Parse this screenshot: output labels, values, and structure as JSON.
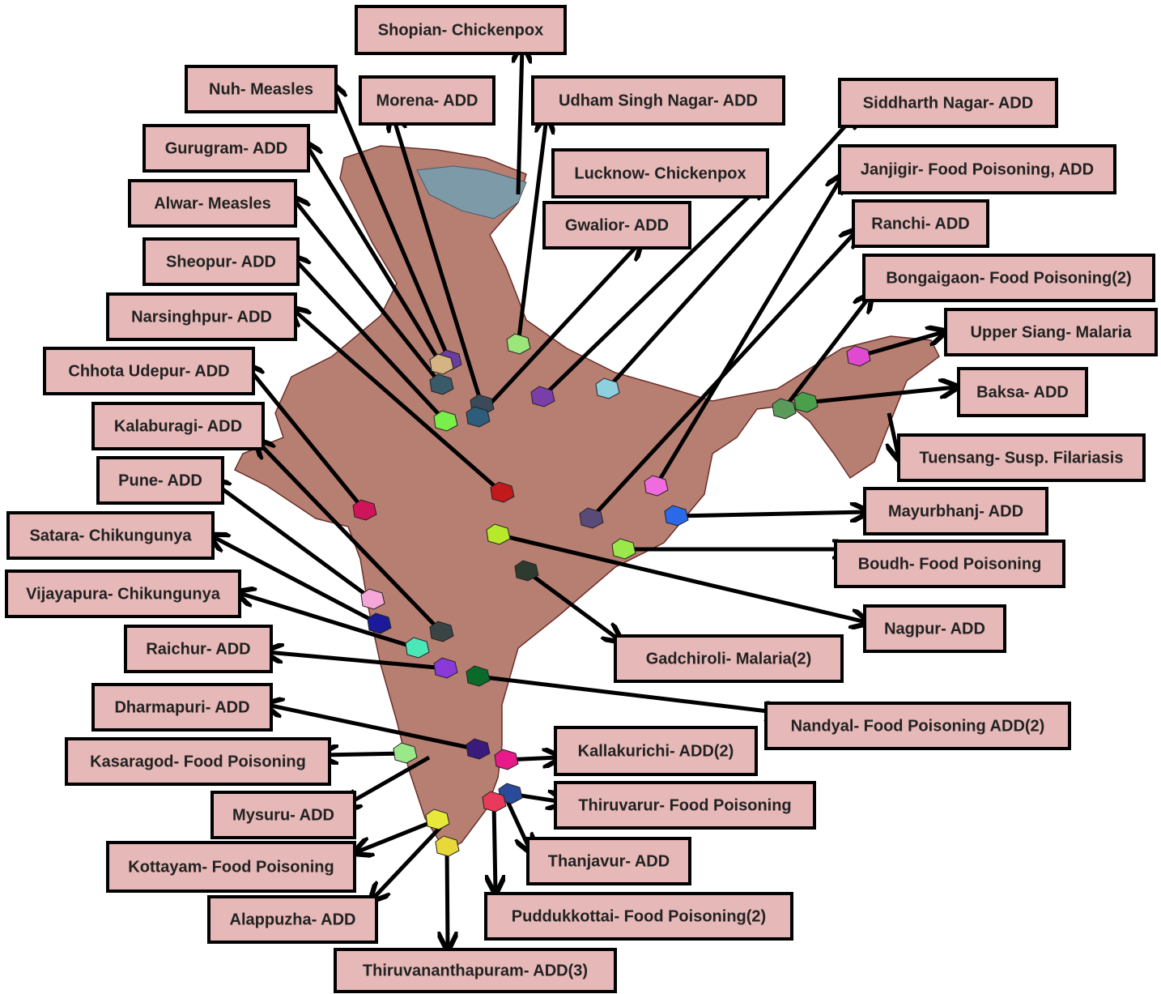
{
  "labels": [
    "Shopian- Chickenpox",
    "Nuh- Measles",
    "Morena- ADD",
    "Udham Singh Nagar- ADD",
    "Siddharth Nagar- ADD",
    "Gurugram- ADD",
    "Lucknow- Chickenpox",
    "Janjigir- Food Poisoning, ADD",
    "Alwar- Measles",
    "Gwalior- ADD",
    "Ranchi- ADD",
    "Sheopur- ADD",
    "Bongaigaon- Food Poisoning(2)",
    "Narsinghpur- ADD",
    "Upper Siang- Malaria",
    "Chhota Udepur- ADD",
    "Baksa- ADD",
    "Kalaburagi- ADD",
    "Tuensang- Susp. Filariasis",
    "Pune- ADD",
    "Mayurbhanj- ADD",
    "Satara- Chikungunya",
    "Boudh- Food Poisoning",
    "Vijayapura- Chikungunya",
    "Nagpur- ADD",
    "Gadchiroli- Malaria(2)",
    "Raichur- ADD",
    "Dharmapuri- ADD",
    "Nandyal- Food Poisoning ADD(2)",
    "Kasaragod- Food Poisoning",
    "Kallakurichi- ADD(2)",
    "Thiruvarur- Food Poisoning",
    "Mysuru- ADD",
    "Thanjavur- ADD",
    "Kottayam- Food Poisoning",
    "Puddukkottai- Food Poisoning(2)",
    "Alappuzha- ADD",
    "Thiruvananthapuram- ADD(3)"
  ]
}
